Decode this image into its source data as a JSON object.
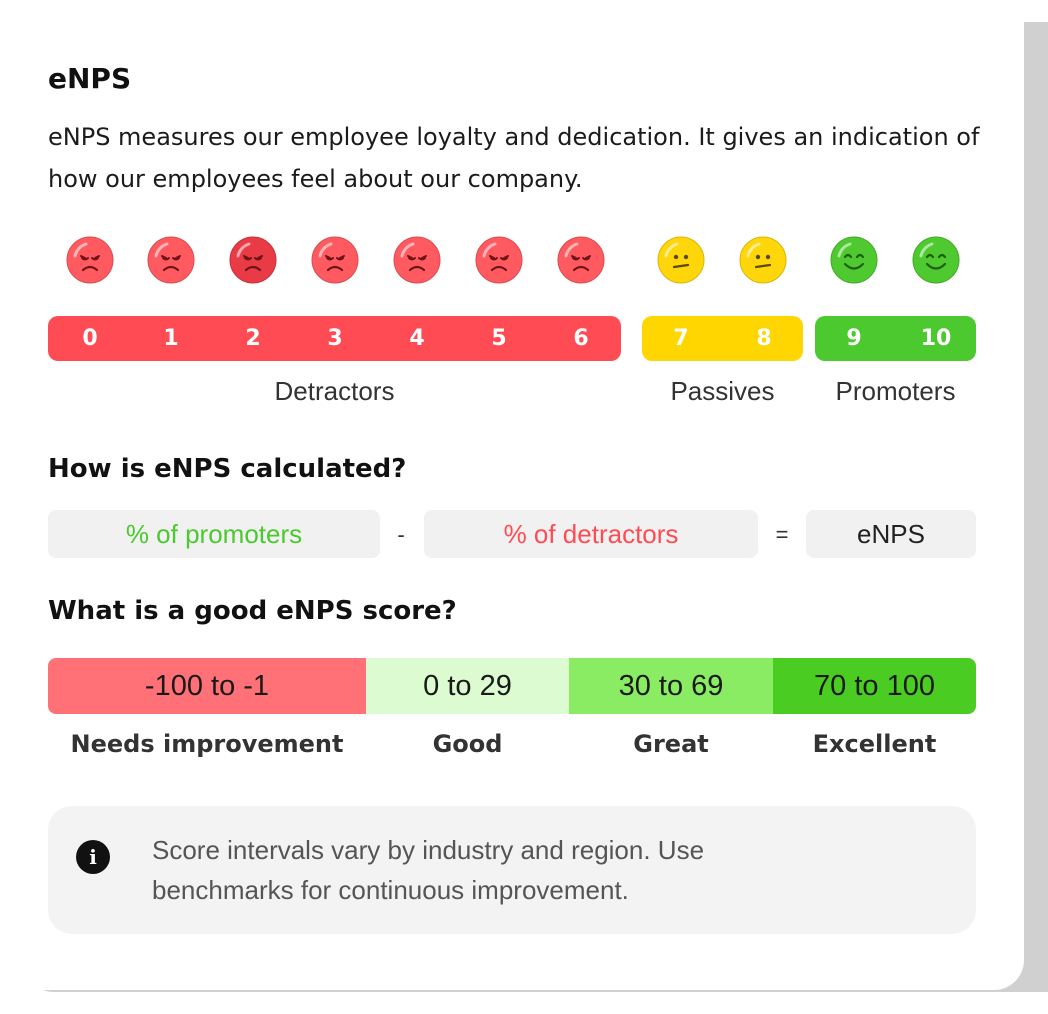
{
  "title": "eNPS",
  "description": "eNPS measures our employee loyalty and dedication. It gives an indication of how our employees feel about our company.",
  "faces": [
    {
      "score": "0",
      "mood": "sad",
      "color": "#ff5a5f"
    },
    {
      "score": "1",
      "mood": "sad",
      "color": "#ff5a5f"
    },
    {
      "score": "2",
      "mood": "sad",
      "color": "#e83b45"
    },
    {
      "score": "3",
      "mood": "sad",
      "color": "#ff5a5f"
    },
    {
      "score": "4",
      "mood": "sad",
      "color": "#ff5a5f"
    },
    {
      "score": "5",
      "mood": "sad",
      "color": "#ff5a5f"
    },
    {
      "score": "6",
      "mood": "sad",
      "color": "#ff5a5f"
    },
    {
      "score": "7",
      "mood": "neutral",
      "color": "#ffd60a"
    },
    {
      "score": "8",
      "mood": "neutral",
      "color": "#ffd60a"
    },
    {
      "score": "9",
      "mood": "happy",
      "color": "#4ec92f"
    },
    {
      "score": "10",
      "mood": "happy",
      "color": "#4ec92f"
    }
  ],
  "scale": {
    "numbers": [
      "0",
      "1",
      "2",
      "3",
      "4",
      "5",
      "6",
      "7",
      "8",
      "9",
      "10"
    ],
    "groups": [
      {
        "label": "Detractors",
        "color": "#ff4b53"
      },
      {
        "label": "Passives",
        "color": "#ffd600"
      },
      {
        "label": "Promoters",
        "color": "#4cc92e"
      }
    ]
  },
  "calculation": {
    "heading": "How is eNPS calculated?",
    "promoters": "% of promoters",
    "promoters_color": "#4cc92e",
    "minus": "-",
    "detractors": "% of detractors",
    "detractors_color": "#ff4b53",
    "equals": "=",
    "result": "eNPS"
  },
  "score_guide": {
    "heading": "What is a good eNPS score?",
    "ranges": [
      {
        "range": "-100 to -1",
        "label": "Needs improvement",
        "color": "#ff7177"
      },
      {
        "range": "0 to 29",
        "label": "Good",
        "color": "#dcfbd0"
      },
      {
        "range": "30 to 69",
        "label": "Great",
        "color": "#8aec62"
      },
      {
        "range": "70 to 100",
        "label": "Excellent",
        "color": "#4bcc23"
      }
    ]
  },
  "note": {
    "icon": "info-icon",
    "icon_glyph": "i",
    "text": "Score intervals vary by industry and region. Use benchmarks for continuous improvement."
  }
}
